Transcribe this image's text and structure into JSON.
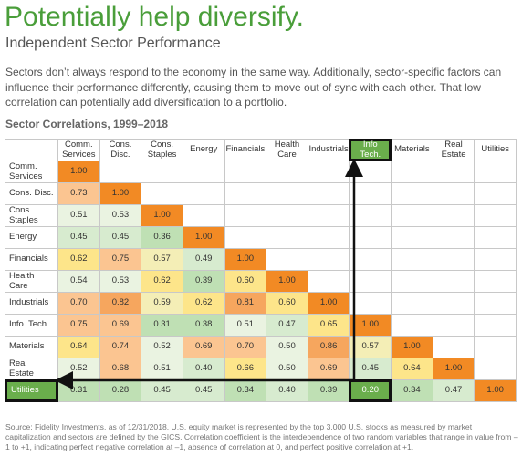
{
  "header": {
    "title": "Potentially help diversify.",
    "subtitle": "Independent Sector Performance"
  },
  "intro": "Sectors don’t always respond to the economy in the same way. Additionally, sector-specific factors can influence their performance differently, causing them to move out of sync with each other. That low correlation can potentially add diversification to a portfolio.",
  "table": {
    "title": "Sector Correlations, 1999–2018",
    "columns": [
      "Comm. Services",
      "Cons. Disc.",
      "Cons. Staples",
      "Energy",
      "Financials",
      "Health Care",
      "Industrials",
      "Info Tech.",
      "Materials",
      "Real Estate",
      "Utilities"
    ],
    "rows": [
      {
        "label": "Comm. Services",
        "cells": [
          "1.00"
        ]
      },
      {
        "label": "Cons. Disc.",
        "cells": [
          "0.73",
          "1.00"
        ]
      },
      {
        "label": "Cons. Staples",
        "cells": [
          "0.51",
          "0.53",
          "1.00"
        ]
      },
      {
        "label": "Energy",
        "cells": [
          "0.45",
          "0.45",
          "0.36",
          "1.00"
        ]
      },
      {
        "label": "Financials",
        "cells": [
          "0.62",
          "0.75",
          "0.57",
          "0.49",
          "1.00"
        ]
      },
      {
        "label": "Health Care",
        "cells": [
          "0.54",
          "0.53",
          "0.62",
          "0.39",
          "0.60",
          "1.00"
        ]
      },
      {
        "label": "Industrials",
        "cells": [
          "0.70",
          "0.82",
          "0.59",
          "0.62",
          "0.81",
          "0.60",
          "1.00"
        ]
      },
      {
        "label": "Info. Tech",
        "cells": [
          "0.75",
          "0.69",
          "0.31",
          "0.38",
          "0.51",
          "0.47",
          "0.65",
          "1.00"
        ]
      },
      {
        "label": "Materials",
        "cells": [
          "0.64",
          "0.74",
          "0.52",
          "0.69",
          "0.70",
          "0.50",
          "0.86",
          "0.57",
          "1.00"
        ]
      },
      {
        "label": "Real Estate",
        "cells": [
          "0.52",
          "0.68",
          "0.51",
          "0.40",
          "0.66",
          "0.50",
          "0.69",
          "0.45",
          "0.64",
          "1.00"
        ]
      },
      {
        "label": "Utilities",
        "cells": [
          "0.31",
          "0.28",
          "0.45",
          "0.45",
          "0.34",
          "0.40",
          "0.39",
          "0.20",
          "0.34",
          "0.47",
          "1.00"
        ]
      }
    ]
  },
  "footnote": "Source: Fidelity Investments, as of 12/31/2018. U.S. equity market is represented by the top 3,000 U.S. stocks as measured by market capitalization and sectors are defined by the GICS. Correlation coefficient is the interdependence of two random variables that range in value from –1 to +1, indicating perfect negative correlation at –1, absence of correlation at 0, and perfect positive correlation at +1."
}
